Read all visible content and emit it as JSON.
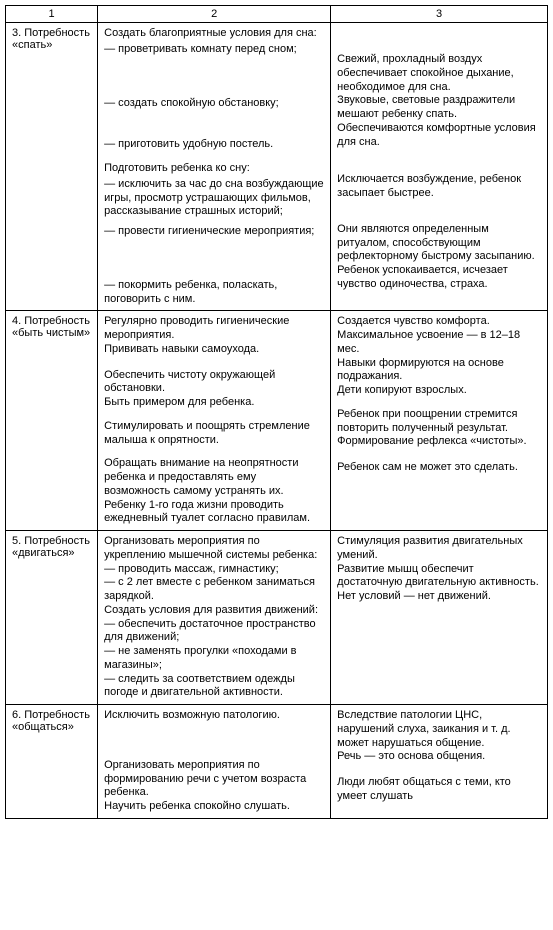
{
  "headers": {
    "c1": "1",
    "c2": "2",
    "c3": "3"
  },
  "rows": [
    {
      "col1": "3. Потребность «спать»",
      "col2": [
        "Создать благоприятные условия для сна:",
        "— проветривать комнату перед сном;",
        "",
        "",
        "— создать спокойную обстановку;",
        "",
        "",
        "— приготовить удобную постель.",
        "",
        "Подготовить ребенка ко сну:",
        "— исключить за час до сна возбуждающие игры, просмотр устрашающих фильмов, рассказывание страшных историй;",
        "— провести гигиенические мероприятия;",
        "",
        "",
        "— покормить ребенка, поласкать, поговорить с ним."
      ],
      "col3": [
        "",
        "Свежий, прохладный воздух обеспечивает спокойное дыхание, необходимое для сна.",
        "Звуковые, световые раздражители мешают ребенку спать.",
        "Обеспечиваются комфортные условия для сна.",
        "",
        "Исключается возбуждение, ребенок засыпает быстрее.",
        "",
        "Они являются определенным ритуалом, способствующим рефлекторному быстрому засыпанию.",
        "Ребенок успокаивается, исчезает чувство одиночества, страха."
      ],
      "col2_spacing": {
        "0": 0,
        "1": 40,
        "4": 28,
        "7": 12,
        "9": 0,
        "10": 0,
        "11": 38,
        "14": 0
      },
      "col3_spacing": {
        "1": 14,
        "2": 0,
        "3": 0,
        "5": 20,
        "7": 0,
        "8": 0
      }
    },
    {
      "col1": "4. Потребность «быть чистым»",
      "col2": [
        "Регулярно проводить гигиенические мероприятия.",
        "Прививать навыки самоухода.",
        "",
        "Обеспечить чистоту окружающей обстановки.",
        "Быть примером для ребенка.",
        "",
        "Стимулировать и поощрять стремление малыша к опрятности.",
        "",
        "Обращать внимание на неопрятности ребенка и предоставлять ему возможность самому устранять их.",
        "Ребенку 1-го года жизни проводить ежедневный туалет согласно правилам."
      ],
      "col3": [
        "Создается чувство комфорта.",
        "Максимальное усвоение — в 12–18 мес.",
        "Навыки формируются на основе подражания.",
        "Дети копируют взрослых.",
        "",
        "Ребенок при поощрении стремится повторить полученный результат.",
        "Формирование рефлекса «чистоты».",
        "",
        "Ребенок сам не может это сделать."
      ]
    },
    {
      "col1": "5. Потребность «двигаться»",
      "col2": [
        "Организовать мероприятия по укреплению мышечной системы ребенка:",
        "— проводить массаж, гимнастику;",
        "— с 2 лет вместе с ребенком заниматься зарядкой.",
        "Создать условия для развития движений:",
        "— обеспечить достаточное пространство для движений;",
        "— не заменять прогулки «походами в магазины»;",
        "— следить за соответствием одежды погоде и двигательной активности."
      ],
      "col3": [
        "Стимуляция развития двигательных умений.",
        "Развитие мышц обеспечит достаточную двигательную активность.",
        "Нет условий — нет движений."
      ]
    },
    {
      "col1": "6. Потребность «общаться»",
      "col2": [
        "Исключить возможную патологию.",
        "",
        "",
        "Организовать мероприятия по формированию речи с учетом возраста ребенка.",
        "Научить ребенка спокойно слушать."
      ],
      "col3": [
        "Вследствие патологии ЦНС, нарушений слуха, заикания и т. д. может нарушаться общение.",
        "Речь — это основа общения.",
        "",
        "Люди любят общаться с теми, кто умеет слушать"
      ]
    }
  ]
}
